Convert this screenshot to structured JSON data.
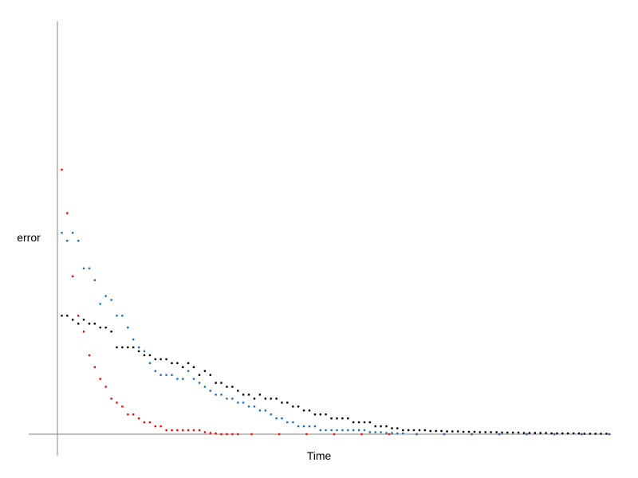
{
  "chart_data": {
    "type": "scatter",
    "title": "",
    "xlabel": "Time",
    "ylabel": "error",
    "xlim": [
      0,
      200
    ],
    "ylim": [
      -0.02,
      1.05
    ],
    "grid": false,
    "legend": "none",
    "series": [
      {
        "color": "#ff0000",
        "x": [
          1,
          3,
          5,
          7,
          9,
          11,
          13,
          15,
          17,
          19,
          21,
          23,
          25,
          27,
          29,
          31,
          33,
          35,
          37,
          39,
          41,
          43,
          45,
          47,
          49,
          51,
          53,
          55,
          57,
          59,
          61,
          63,
          65,
          70,
          80,
          90,
          100,
          110,
          120,
          130,
          140,
          150,
          160,
          170,
          180,
          190,
          200
        ],
        "y": [
          0.67,
          0.56,
          0.4,
          0.3,
          0.26,
          0.2,
          0.17,
          0.14,
          0.12,
          0.09,
          0.08,
          0.07,
          0.05,
          0.05,
          0.04,
          0.03,
          0.03,
          0.02,
          0.02,
          0.01,
          0.01,
          0.01,
          0.01,
          0.01,
          0.01,
          0.01,
          0.005,
          0.003,
          0.002,
          0.0,
          0.0,
          0.0,
          0.0,
          0.0,
          0.0,
          0.0,
          0.0,
          0.0,
          0.0,
          0.0,
          0.0,
          0.0,
          0.0,
          0.0,
          0.0,
          0.0,
          0.0
        ]
      },
      {
        "color": "#1f6fb4",
        "x": [
          1,
          3,
          5,
          7,
          9,
          11,
          13,
          15,
          17,
          19,
          21,
          23,
          25,
          27,
          29,
          31,
          33,
          35,
          37,
          39,
          41,
          43,
          45,
          47,
          49,
          51,
          53,
          55,
          57,
          59,
          61,
          63,
          65,
          67,
          69,
          71,
          73,
          75,
          77,
          79,
          81,
          83,
          85,
          87,
          89,
          91,
          93,
          95,
          97,
          99,
          101,
          103,
          105,
          107,
          109,
          111,
          113,
          115,
          117,
          119,
          121,
          123,
          125,
          130,
          140,
          150,
          160,
          170,
          180,
          190,
          200
        ],
        "y": [
          0.51,
          0.49,
          0.51,
          0.49,
          0.42,
          0.42,
          0.39,
          0.33,
          0.35,
          0.34,
          0.3,
          0.3,
          0.27,
          0.24,
          0.22,
          0.21,
          0.18,
          0.16,
          0.15,
          0.15,
          0.15,
          0.14,
          0.14,
          0.16,
          0.14,
          0.13,
          0.12,
          0.11,
          0.1,
          0.1,
          0.09,
          0.09,
          0.08,
          0.08,
          0.07,
          0.07,
          0.06,
          0.06,
          0.05,
          0.04,
          0.04,
          0.03,
          0.03,
          0.02,
          0.02,
          0.02,
          0.02,
          0.01,
          0.01,
          0.01,
          0.01,
          0.01,
          0.01,
          0.01,
          0.01,
          0.01,
          0.005,
          0.005,
          0.005,
          0.003,
          0.003,
          0.002,
          0.002,
          0.0,
          0.0,
          0.0,
          0.0,
          0.0,
          0.0,
          0.0,
          0.0
        ]
      },
      {
        "color": "#000000",
        "x": [
          1,
          3,
          5,
          7,
          9,
          11,
          13,
          15,
          17,
          19,
          21,
          23,
          25,
          27,
          29,
          31,
          33,
          35,
          37,
          39,
          41,
          43,
          45,
          47,
          49,
          51,
          53,
          55,
          57,
          59,
          61,
          63,
          65,
          67,
          69,
          71,
          73,
          75,
          77,
          79,
          81,
          83,
          85,
          87,
          89,
          91,
          93,
          95,
          97,
          99,
          101,
          103,
          105,
          107,
          109,
          111,
          113,
          115,
          117,
          119,
          121,
          123,
          125,
          127,
          129,
          131,
          133,
          135,
          137,
          139,
          141,
          143,
          145,
          147,
          149,
          151,
          153,
          155,
          157,
          159,
          161,
          163,
          165,
          167,
          169,
          171,
          173,
          175,
          177,
          179,
          181,
          183,
          185,
          187,
          189,
          191,
          193,
          195,
          197,
          199
        ],
        "y": [
          0.3,
          0.3,
          0.29,
          0.28,
          0.29,
          0.28,
          0.28,
          0.27,
          0.27,
          0.26,
          0.22,
          0.22,
          0.22,
          0.22,
          0.21,
          0.2,
          0.2,
          0.19,
          0.19,
          0.19,
          0.18,
          0.18,
          0.17,
          0.18,
          0.17,
          0.15,
          0.16,
          0.15,
          0.13,
          0.13,
          0.12,
          0.12,
          0.11,
          0.1,
          0.1,
          0.09,
          0.1,
          0.09,
          0.09,
          0.09,
          0.08,
          0.08,
          0.07,
          0.07,
          0.06,
          0.06,
          0.05,
          0.05,
          0.05,
          0.04,
          0.04,
          0.04,
          0.04,
          0.03,
          0.03,
          0.03,
          0.03,
          0.02,
          0.02,
          0.02,
          0.015,
          0.015,
          0.01,
          0.01,
          0.01,
          0.01,
          0.01,
          0.008,
          0.008,
          0.008,
          0.007,
          0.007,
          0.007,
          0.006,
          0.006,
          0.006,
          0.005,
          0.005,
          0.005,
          0.005,
          0.004,
          0.004,
          0.004,
          0.004,
          0.003,
          0.003,
          0.003,
          0.003,
          0.003,
          0.002,
          0.002,
          0.002,
          0.002,
          0.002,
          0.002,
          0.001,
          0.001,
          0.001,
          0.001,
          0.001
        ]
      }
    ]
  }
}
